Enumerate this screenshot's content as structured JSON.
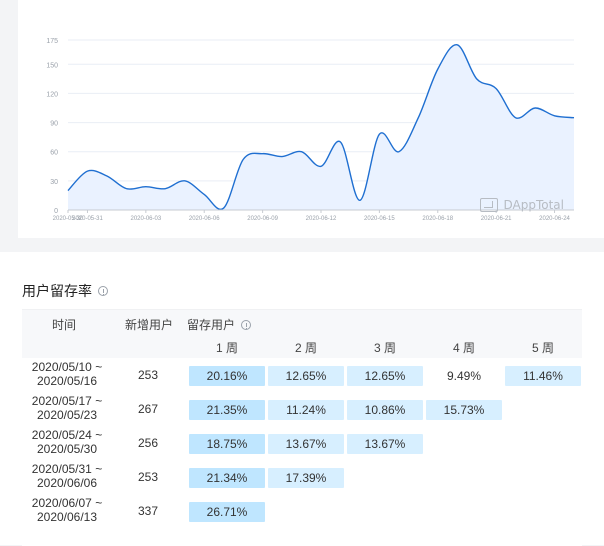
{
  "colors": {
    "line": "#1f6fd1",
    "area": "#eaf2ff",
    "cell_blue": "#d7efff",
    "cell_strong": "#bfe6ff"
  },
  "chart_data": {
    "type": "area",
    "title": "",
    "xlabel": "",
    "ylabel": "",
    "ylim": [
      0,
      175
    ],
    "yticks": [
      0,
      30,
      60,
      90,
      120,
      150,
      175
    ],
    "ytick_labels": [
      "0",
      "30",
      "60",
      "90",
      "120",
      "150",
      "175"
    ],
    "xtick_labels": [
      "2020-05-30",
      "2020-05-31",
      "2020-06-03",
      "2020-06-06",
      "2020-06-09",
      "2020-06-12",
      "2020-06-15",
      "2020-06-18",
      "2020-06-21",
      "2020-06-24"
    ],
    "x": [
      "2020-05-30",
      "2020-05-31",
      "2020-06-01",
      "2020-06-02",
      "2020-06-03",
      "2020-06-04",
      "2020-06-05",
      "2020-06-06",
      "2020-06-07",
      "2020-06-08",
      "2020-06-09",
      "2020-06-10",
      "2020-06-11",
      "2020-06-12",
      "2020-06-13",
      "2020-06-14",
      "2020-06-15",
      "2020-06-16",
      "2020-06-17",
      "2020-06-18",
      "2020-06-19",
      "2020-06-20",
      "2020-06-21",
      "2020-06-22",
      "2020-06-23",
      "2020-06-24",
      "2020-06-25"
    ],
    "series": [
      {
        "name": "",
        "values": [
          20,
          40,
          35,
          22,
          24,
          22,
          30,
          16,
          2,
          52,
          58,
          55,
          60,
          45,
          70,
          10,
          78,
          60,
          95,
          145,
          170,
          135,
          125,
          95,
          105,
          97,
          95
        ]
      }
    ],
    "grid": true,
    "legend": "none",
    "watermark": "DAppTotal"
  },
  "retention": {
    "title": "用户留存率",
    "headers": {
      "time": "时间",
      "new_users": "新增用户",
      "retained_users": "留存用户",
      "weeks": [
        "1 周",
        "2 周",
        "3 周",
        "4 周",
        "5 周"
      ]
    },
    "rows": [
      {
        "time_line1": "2020/05/10 ~",
        "time_line2": "2020/05/16",
        "new": "253",
        "cells": [
          "20.16%",
          "12.65%",
          "12.65%",
          "9.49%",
          "11.46%"
        ]
      },
      {
        "time_line1": "2020/05/17 ~",
        "time_line2": "2020/05/23",
        "new": "267",
        "cells": [
          "21.35%",
          "11.24%",
          "10.86%",
          "15.73%",
          ""
        ]
      },
      {
        "time_line1": "2020/05/24 ~",
        "time_line2": "2020/05/30",
        "new": "256",
        "cells": [
          "18.75%",
          "13.67%",
          "13.67%",
          "",
          ""
        ]
      },
      {
        "time_line1": "2020/05/31 ~",
        "time_line2": "2020/06/06",
        "new": "253",
        "cells": [
          "21.34%",
          "17.39%",
          "",
          "",
          ""
        ]
      },
      {
        "time_line1": "2020/06/07 ~",
        "time_line2": "2020/06/13",
        "new": "337",
        "cells": [
          "26.71%",
          "",
          "",
          "",
          ""
        ]
      }
    ]
  }
}
